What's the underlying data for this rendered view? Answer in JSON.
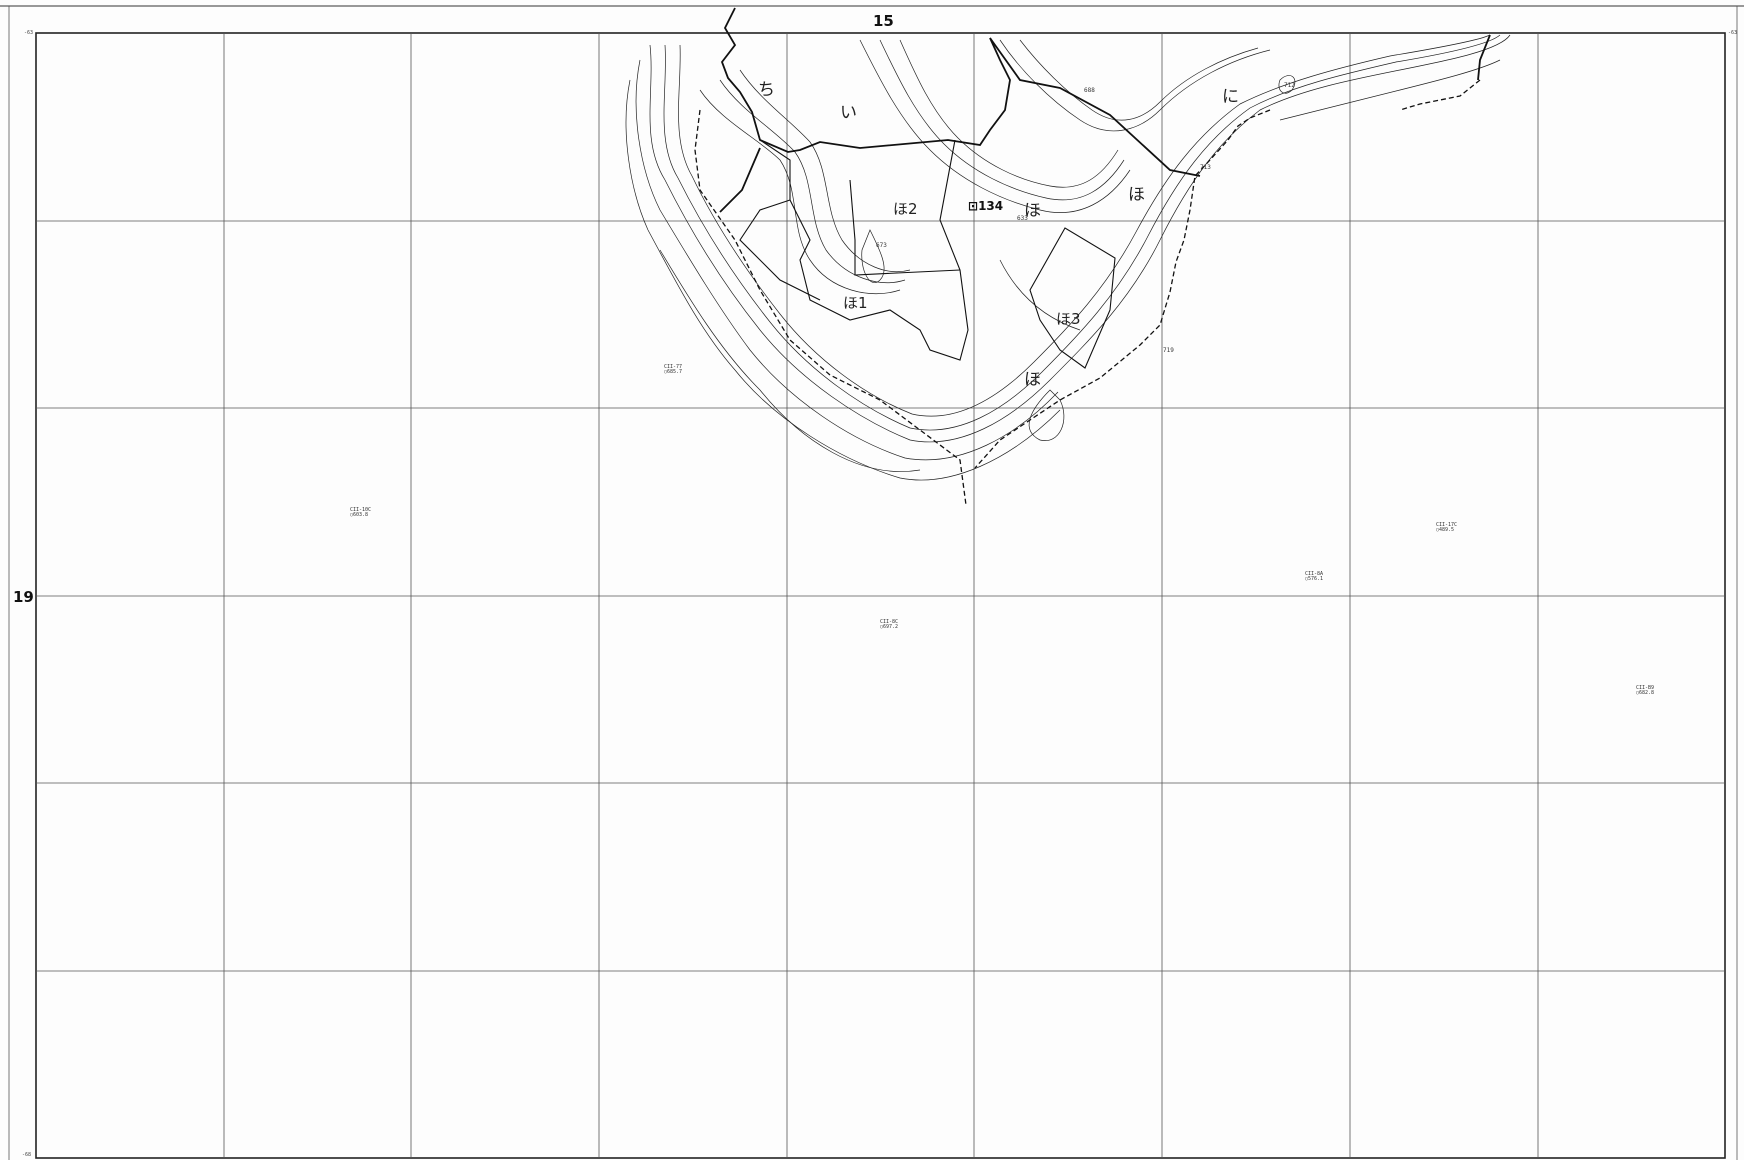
{
  "map": {
    "grid_labels": {
      "top": "15",
      "left": "19"
    },
    "edge_marks": {
      "top_left": "-63",
      "top_right": "-63",
      "bottom_left": "-68"
    },
    "parcel_label": "134",
    "kana_labels": [
      "ち",
      "い",
      "ほ2",
      "ほ",
      "ほ",
      "ほ1",
      "ほ3",
      "ほ",
      "に"
    ],
    "survey_points": [
      {
        "code": "CII-77",
        "value": "685.7"
      },
      {
        "code": "CII-10C",
        "value": "603.8"
      },
      {
        "code": "CII-8C",
        "value": "697.2"
      },
      {
        "code": "CII-8A",
        "value": "576.1"
      },
      {
        "code": "CII-17C",
        "value": "489.5"
      },
      {
        "code": "CII-B9",
        "value": "682.8"
      }
    ],
    "elevation_marks": [
      "673",
      "633",
      "712",
      "713",
      "719",
      "688"
    ],
    "legend_colors": {
      "lines": "#222222",
      "grid": "#555555",
      "background": "#fdfdfd"
    }
  }
}
